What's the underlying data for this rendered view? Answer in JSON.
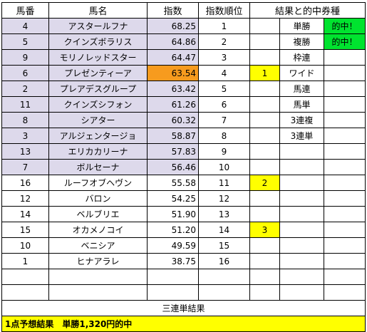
{
  "headers": {
    "number": "馬番",
    "name": "馬名",
    "index": "指数",
    "rank": "指数順位",
    "result": "結果と的中券種"
  },
  "rows": [
    {
      "number": "4",
      "name": "アスタールフナ",
      "index": "68.25",
      "rank": "1",
      "place": "",
      "ticket": "単勝",
      "hit": "的中！",
      "highlight": "lavender"
    },
    {
      "number": "5",
      "name": "クインズボラリス",
      "index": "64.86",
      "rank": "2",
      "place": "",
      "ticket": "複勝",
      "hit": "的中！",
      "highlight": "lavender"
    },
    {
      "number": "9",
      "name": "モリノレッドスター",
      "index": "64.47",
      "rank": "3",
      "place": "",
      "ticket": "枠連",
      "hit": "",
      "highlight": "lavender"
    },
    {
      "number": "6",
      "name": "プレゼンティーア",
      "index": "63.54",
      "rank": "4",
      "place": "1",
      "ticket": "ワイド",
      "hit": "",
      "highlight": "lavender-orange"
    },
    {
      "number": "2",
      "name": "プレアデスグループ",
      "index": "63.42",
      "rank": "5",
      "place": "",
      "ticket": "馬連",
      "hit": "",
      "highlight": "lavender"
    },
    {
      "number": "11",
      "name": "クインズシフォン",
      "index": "61.26",
      "rank": "6",
      "place": "",
      "ticket": "馬単",
      "hit": "",
      "highlight": "lavender"
    },
    {
      "number": "8",
      "name": "シアター",
      "index": "60.32",
      "rank": "7",
      "place": "",
      "ticket": "3連複",
      "hit": "",
      "highlight": "lavender"
    },
    {
      "number": "3",
      "name": "アルジェンタージョ",
      "index": "58.87",
      "rank": "8",
      "place": "",
      "ticket": "3連単",
      "hit": "",
      "highlight": "lavender"
    },
    {
      "number": "13",
      "name": "エリカカリーナ",
      "index": "57.83",
      "rank": "9",
      "place": "",
      "ticket": "",
      "hit": "",
      "highlight": "lavender"
    },
    {
      "number": "7",
      "name": "ボルセーナ",
      "index": "56.46",
      "rank": "10",
      "place": "",
      "ticket": "",
      "hit": "",
      "highlight": "lavender"
    },
    {
      "number": "16",
      "name": "ルーフオブヘヴン",
      "index": "55.58",
      "rank": "11",
      "place": "2",
      "ticket": "",
      "hit": "",
      "highlight": "none"
    },
    {
      "number": "12",
      "name": "バロン",
      "index": "54.25",
      "rank": "12",
      "place": "",
      "ticket": "",
      "hit": "",
      "highlight": "none"
    },
    {
      "number": "14",
      "name": "ベルブリエ",
      "index": "51.90",
      "rank": "13",
      "place": "",
      "ticket": "",
      "hit": "",
      "highlight": "none"
    },
    {
      "number": "15",
      "name": "オカメノコイ",
      "index": "51.20",
      "rank": "14",
      "place": "3",
      "ticket": "",
      "hit": "",
      "highlight": "none"
    },
    {
      "number": "10",
      "name": "ベニシア",
      "index": "49.59",
      "rank": "15",
      "place": "",
      "ticket": "",
      "hit": "",
      "highlight": "none"
    },
    {
      "number": "1",
      "name": "ヒナアラレ",
      "index": "38.75",
      "rank": "16",
      "place": "",
      "ticket": "",
      "hit": "",
      "highlight": "none"
    }
  ],
  "summary": {
    "title": "三連単結果",
    "result_text": "1点予想結果　単勝1,320円的中"
  },
  "colors": {
    "lavender": "#ddd9eb",
    "orange": "#f79b1e",
    "yellow": "#ffff00",
    "green": "#00e32f"
  }
}
